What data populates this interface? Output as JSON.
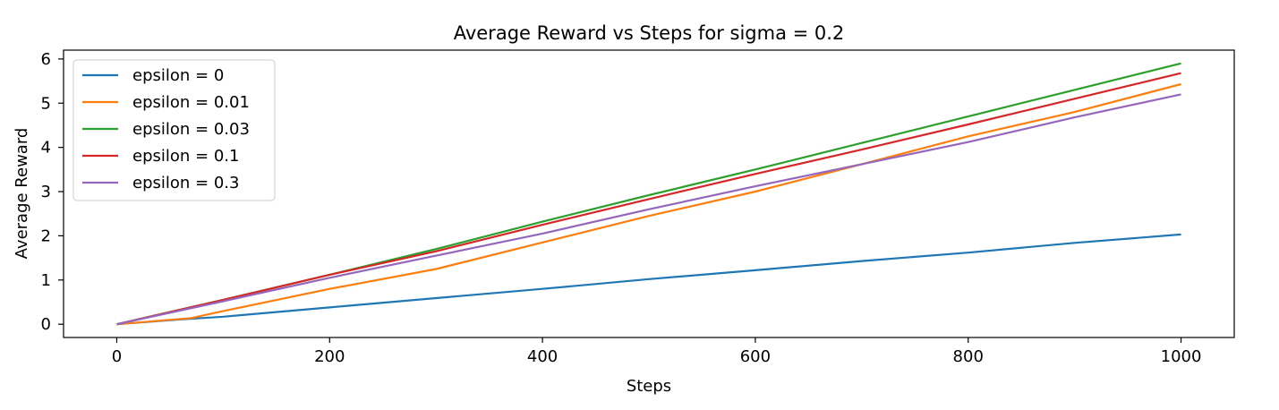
{
  "chart_data": {
    "type": "line",
    "title": "Average Reward vs Steps for sigma = 0.2",
    "xlabel": "Steps",
    "ylabel": "Average Reward",
    "xlim": [
      -50,
      1050
    ],
    "ylim": [
      -0.3,
      6.2
    ],
    "xticks": [
      0,
      200,
      400,
      600,
      800,
      1000
    ],
    "yticks": [
      0,
      1,
      2,
      3,
      4,
      5,
      6
    ],
    "grid": false,
    "legend_position": "upper left",
    "series": [
      {
        "name": "epsilon = 0",
        "color": "#1f77b4",
        "x": [
          0,
          60,
          100,
          200,
          300,
          400,
          500,
          600,
          700,
          800,
          900,
          1000
        ],
        "y": [
          0,
          0.11,
          0.17,
          0.38,
          0.59,
          0.8,
          1.02,
          1.22,
          1.43,
          1.62,
          1.84,
          2.03
        ]
      },
      {
        "name": "epsilon = 0.01",
        "color": "#ff7f0e",
        "x": [
          0,
          70,
          100,
          200,
          300,
          400,
          500,
          600,
          700,
          800,
          900,
          1000
        ],
        "y": [
          0,
          0.14,
          0.3,
          0.8,
          1.25,
          1.85,
          2.45,
          3.0,
          3.62,
          4.25,
          4.8,
          5.43
        ]
      },
      {
        "name": "epsilon = 0.03",
        "color": "#2ca02c",
        "x": [
          0,
          100,
          200,
          300,
          400,
          500,
          600,
          700,
          800,
          900,
          1000
        ],
        "y": [
          0,
          0.55,
          1.12,
          1.7,
          2.32,
          2.92,
          3.5,
          4.1,
          4.7,
          5.3,
          5.9
        ]
      },
      {
        "name": "epsilon = 0.1",
        "color": "#d62728",
        "x": [
          0,
          100,
          200,
          300,
          400,
          500,
          600,
          700,
          800,
          900,
          1000
        ],
        "y": [
          0,
          0.55,
          1.12,
          1.65,
          2.25,
          2.83,
          3.4,
          3.95,
          4.52,
          5.1,
          5.68
        ]
      },
      {
        "name": "epsilon = 0.3",
        "color": "#9467bd",
        "x": [
          0,
          100,
          200,
          300,
          400,
          500,
          600,
          700,
          800,
          900,
          1000
        ],
        "y": [
          0,
          0.52,
          1.05,
          1.55,
          2.05,
          2.6,
          3.12,
          3.62,
          4.12,
          4.68,
          5.2
        ]
      }
    ]
  }
}
